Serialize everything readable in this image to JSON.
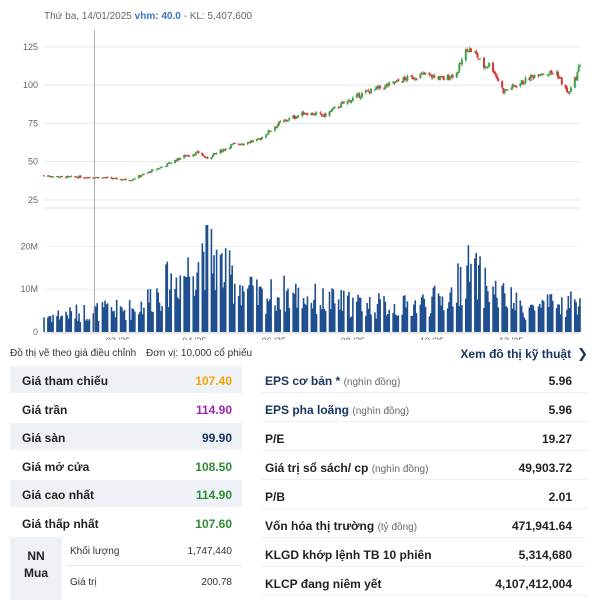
{
  "hover": {
    "date": "Thứ ba, 14/01/2025",
    "vhm_label": "vhm:",
    "vhm_value": "40.0",
    "volume": "- KL: 5,407,600"
  },
  "chart_data": [
    {
      "type": "candlestick",
      "title": "",
      "yticks": [
        "125",
        "100",
        "75",
        "50",
        "25"
      ],
      "ylim": [
        23,
        136
      ],
      "xticks": [
        "02 '25",
        "04 '25",
        "06 '25",
        "08 '25",
        "10 '25",
        "12 '25"
      ],
      "x_range": [
        "2024-12-06",
        "2026-01-23"
      ],
      "crosshair_date": "2025-01-14",
      "colors": {
        "up": "#3aa64a",
        "down": "#d93434"
      },
      "anchors": [
        {
          "date": "2024-12-06",
          "close": 41
        },
        {
          "date": "2024-12-20",
          "close": 40
        },
        {
          "date": "2025-01-14",
          "close": 40
        },
        {
          "date": "2025-02-10",
          "close": 38
        },
        {
          "date": "2025-03-05",
          "close": 46
        },
        {
          "date": "2025-03-25",
          "close": 54
        },
        {
          "date": "2025-04-05",
          "close": 56
        },
        {
          "date": "2025-04-10",
          "close": 52
        },
        {
          "date": "2025-04-30",
          "close": 61
        },
        {
          "date": "2025-05-20",
          "close": 64
        },
        {
          "date": "2025-06-05",
          "close": 75
        },
        {
          "date": "2025-06-25",
          "close": 82
        },
        {
          "date": "2025-07-10",
          "close": 80
        },
        {
          "date": "2025-07-20",
          "close": 86
        },
        {
          "date": "2025-08-10",
          "close": 95
        },
        {
          "date": "2025-08-25",
          "close": 99
        },
        {
          "date": "2025-09-10",
          "close": 104
        },
        {
          "date": "2025-09-25",
          "close": 107
        },
        {
          "date": "2025-10-10",
          "close": 104
        },
        {
          "date": "2025-10-20",
          "close": 108
        },
        {
          "date": "2025-10-28",
          "close": 124
        },
        {
          "date": "2025-11-03",
          "close": 121
        },
        {
          "date": "2025-11-10",
          "close": 112
        },
        {
          "date": "2025-11-15",
          "close": 114
        },
        {
          "date": "2025-11-25",
          "close": 96
        },
        {
          "date": "2025-12-10",
          "close": 102
        },
        {
          "date": "2025-12-22",
          "close": 108
        },
        {
          "date": "2026-01-05",
          "close": 108
        },
        {
          "date": "2026-01-14",
          "close": 94
        },
        {
          "date": "2026-01-20",
          "close": 105
        },
        {
          "date": "2026-01-23",
          "close": 114
        }
      ]
    },
    {
      "type": "bar",
      "title": "",
      "yticks": [
        "20M",
        "10M",
        "0"
      ],
      "ylim": [
        0,
        25
      ],
      "unit": "M",
      "anchors": [
        {
          "date": "2024-12-06",
          "volume": 4
        },
        {
          "date": "2025-01-14",
          "volume": 5.4
        },
        {
          "date": "2025-02-15",
          "volume": 6
        },
        {
          "date": "2025-03-10",
          "volume": 12
        },
        {
          "date": "2025-03-28",
          "volume": 16
        },
        {
          "date": "2025-04-08",
          "volume": 22
        },
        {
          "date": "2025-04-25",
          "volume": 15
        },
        {
          "date": "2025-05-20",
          "volume": 9
        },
        {
          "date": "2025-06-10",
          "volume": 10
        },
        {
          "date": "2025-07-10",
          "volume": 8
        },
        {
          "date": "2025-08-10",
          "volume": 7
        },
        {
          "date": "2025-09-10",
          "volume": 6.5
        },
        {
          "date": "2025-10-15",
          "volume": 9
        },
        {
          "date": "2025-10-28",
          "volume": 16
        },
        {
          "date": "2025-11-15",
          "volume": 11
        },
        {
          "date": "2025-12-10",
          "volume": 6
        },
        {
          "date": "2026-01-10",
          "volume": 7
        },
        {
          "date": "2026-01-23",
          "volume": 8
        }
      ]
    }
  ],
  "footer": {
    "note": "Đồ thị vẽ theo giá điều chỉnh",
    "unit": "Đơn vị: 10,000 cổ phiếu",
    "tech_link": "Xem đồ thị kỹ thuật",
    "tech_icon": "chevron-right-icon"
  },
  "left_table": {
    "rows": [
      {
        "label": "Giá tham chiếu",
        "value": "107.40",
        "color": "#f0a500"
      },
      {
        "label": "Giá trần",
        "value": "114.90",
        "color": "#9b27b0"
      },
      {
        "label": "Giá sàn",
        "value": "99.90",
        "color": "#16345e"
      },
      {
        "label": "Giá mở cửa",
        "value": "108.50",
        "color": "#2e8b34"
      },
      {
        "label": "Giá cao nhất",
        "value": "114.90",
        "color": "#2e8b34"
      },
      {
        "label": "Giá thấp nhất",
        "value": "107.60",
        "color": "#2e8b34"
      }
    ],
    "nn": {
      "label_line1": "NN",
      "label_line2": "Mua",
      "volume_label": "Khối lượng",
      "volume_value": "1,747,440",
      "value_label": "Giá trị",
      "value_value": "200.78"
    }
  },
  "right_table": {
    "rows": [
      {
        "label": "EPS cơ bản *",
        "unit": "(nghìn đồng)",
        "value": "5.96",
        "label_color": "#16345e"
      },
      {
        "label": "EPS pha loãng",
        "unit": "(nghìn đồng)",
        "value": "5.96",
        "label_color": "#16345e"
      },
      {
        "label": "P/E",
        "unit": "",
        "value": "19.27",
        "label_color": "#222222"
      },
      {
        "label": "Giá trị sổ sách/ cp",
        "unit": "(nghìn đồng)",
        "value": "49,903.72",
        "label_color": "#222222"
      },
      {
        "label": "P/B",
        "unit": "",
        "value": "2.01",
        "label_color": "#222222"
      },
      {
        "label": "Vốn hóa thị trường",
        "unit": "(tỷ đồng)",
        "value": "471,941.64",
        "label_color": "#222222"
      },
      {
        "label": "KLGD khớp lệnh TB 10 phiên",
        "unit": "",
        "value": "5,314,680",
        "label_color": "#222222"
      },
      {
        "label": "KLCP đang niêm yết",
        "unit": "",
        "value": "4,107,412,004",
        "label_color": "#222222"
      }
    ]
  }
}
